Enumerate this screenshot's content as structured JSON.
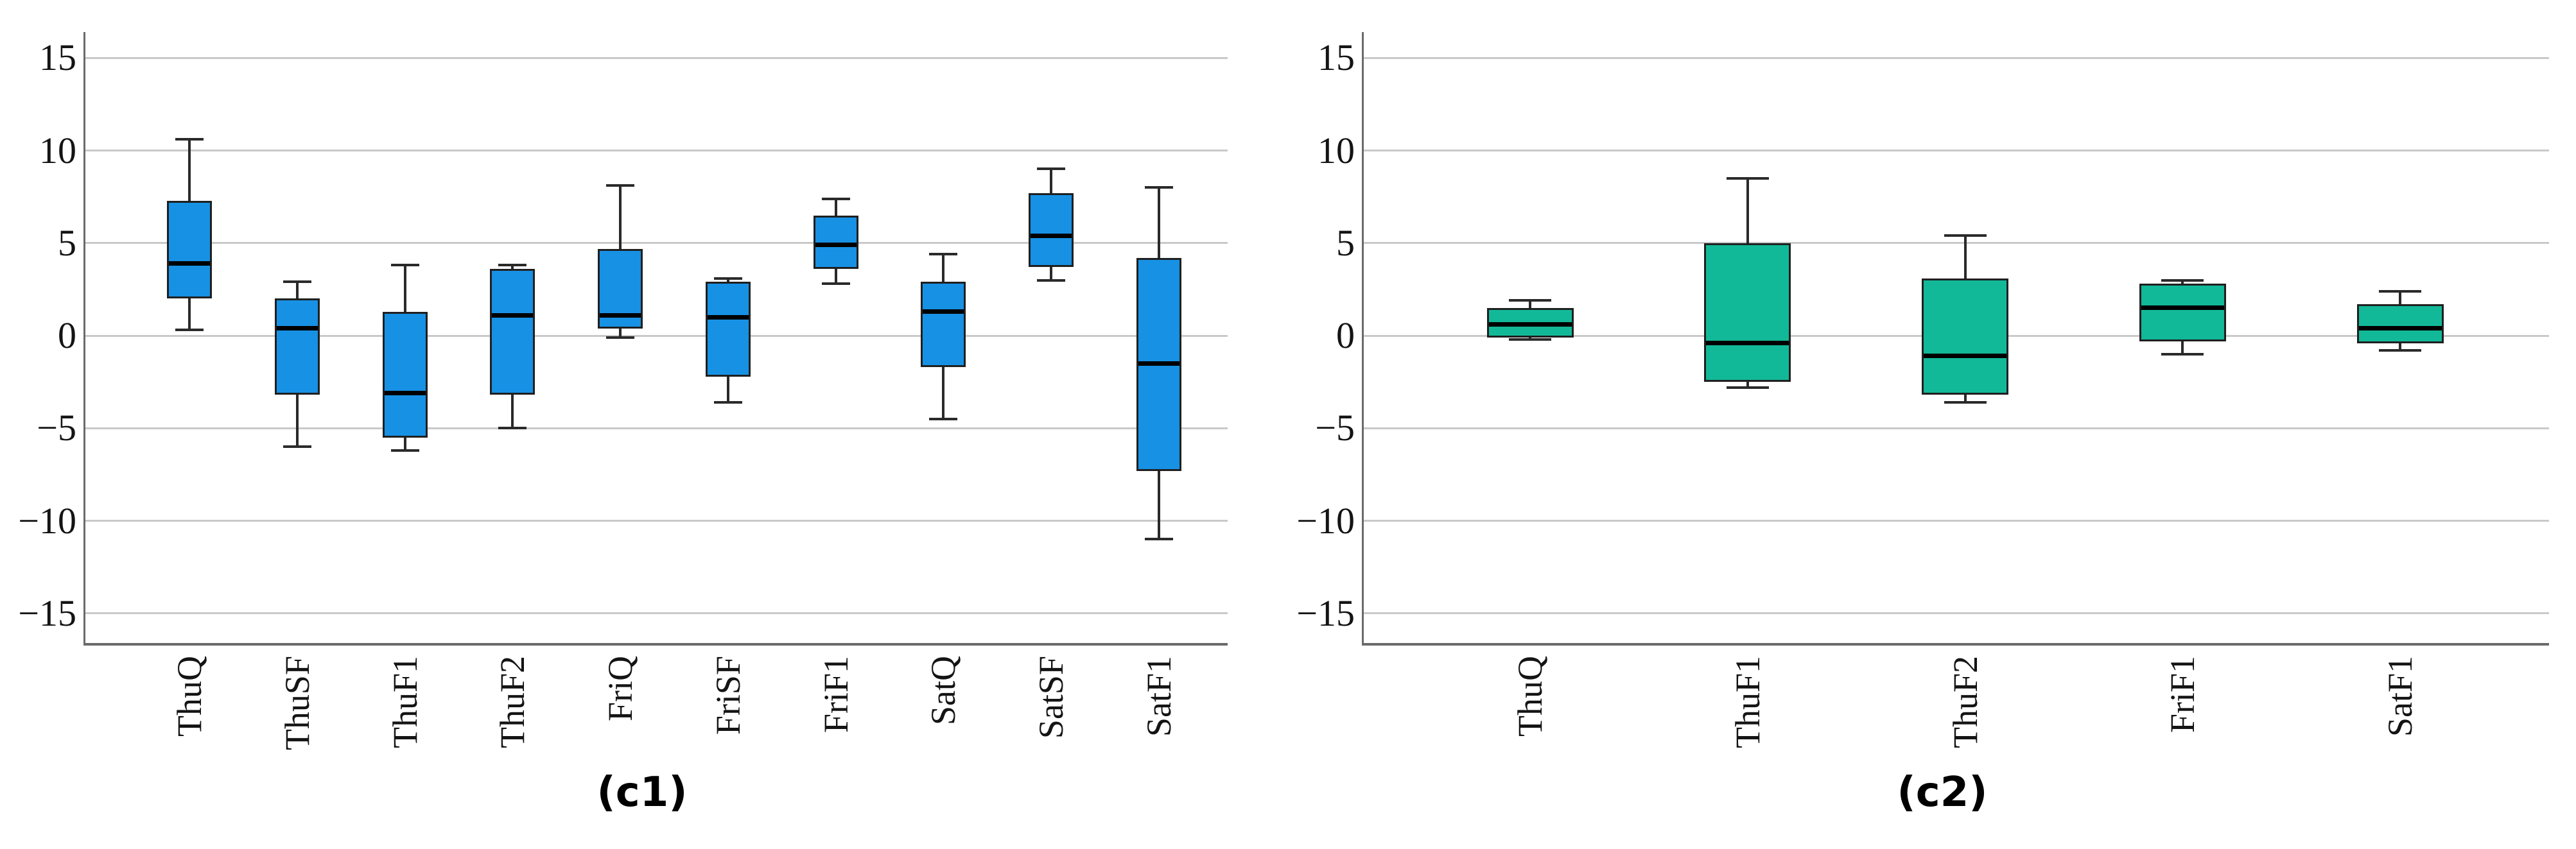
{
  "figure": {
    "background": "#ffffff"
  },
  "colors": {
    "grid": "#c9c9c9",
    "axis": "#6a6a6a",
    "box_edge": "#1f1f1f",
    "whisker": "#2a2a2a",
    "median": "#000000"
  },
  "captions": {
    "left": "(c1)",
    "right": "(c2)"
  },
  "chart_data": [
    {
      "type": "box",
      "panel": "c1",
      "caption": "(c1)",
      "fill_color": "#1791e4",
      "legend": "none",
      "categories": [
        "ThuQ",
        "ThuSF",
        "ThuF1",
        "ThuF2",
        "FriQ",
        "FriSF",
        "FriF1",
        "SatQ",
        "SatSF",
        "SatF1"
      ],
      "boxes": [
        {
          "label": "ThuQ",
          "whisker_low": 0.3,
          "q1": 2.0,
          "median": 3.9,
          "q3": 7.3,
          "whisker_high": 10.6
        },
        {
          "label": "ThuSF",
          "whisker_low": -6.0,
          "q1": -3.2,
          "median": 0.4,
          "q3": 2.0,
          "whisker_high": 2.9
        },
        {
          "label": "ThuF1",
          "whisker_low": -6.2,
          "q1": -5.5,
          "median": -3.1,
          "q3": 1.3,
          "whisker_high": 3.8
        },
        {
          "label": "ThuF2",
          "whisker_low": -5.0,
          "q1": -3.2,
          "median": 1.1,
          "q3": 3.6,
          "whisker_high": 3.8
        },
        {
          "label": "FriQ",
          "whisker_low": -0.1,
          "q1": 0.4,
          "median": 1.1,
          "q3": 4.7,
          "whisker_high": 8.1
        },
        {
          "label": "FriSF",
          "whisker_low": -3.6,
          "q1": -2.2,
          "median": 1.0,
          "q3": 2.9,
          "whisker_high": 3.1
        },
        {
          "label": "FriF1",
          "whisker_low": 2.8,
          "q1": 3.6,
          "median": 4.9,
          "q3": 6.5,
          "whisker_high": 7.4
        },
        {
          "label": "SatQ",
          "whisker_low": -4.5,
          "q1": -1.7,
          "median": 1.3,
          "q3": 2.9,
          "whisker_high": 4.4
        },
        {
          "label": "SatSF",
          "whisker_low": 3.0,
          "q1": 3.7,
          "median": 5.4,
          "q3": 7.7,
          "whisker_high": 9.0
        },
        {
          "label": "SatF1",
          "whisker_low": -11.0,
          "q1": -7.3,
          "median": -1.5,
          "q3": 4.2,
          "whisker_high": 8.0
        }
      ],
      "y_axis": {
        "ticks": [
          {
            "value": 15,
            "label": "15"
          },
          {
            "value": 10,
            "label": "10"
          },
          {
            "value": 5,
            "label": "5"
          },
          {
            "value": 0,
            "label": "0"
          },
          {
            "value": -5,
            "label": "−5"
          },
          {
            "value": -10,
            "label": "−10"
          },
          {
            "value": -15,
            "label": "−15"
          }
        ],
        "ylim": [
          -16.6,
          16.4
        ],
        "grid": true
      }
    },
    {
      "type": "box",
      "panel": "c2",
      "caption": "(c2)",
      "fill_color": "#12b998",
      "legend": "none",
      "categories": [
        "ThuQ",
        "ThuF1",
        "ThuF2",
        "FriF1",
        "SatF1"
      ],
      "boxes": [
        {
          "label": "ThuQ",
          "whisker_low": -0.2,
          "q1": -0.1,
          "median": 0.6,
          "q3": 1.5,
          "whisker_high": 1.9
        },
        {
          "label": "ThuF1",
          "whisker_low": -2.8,
          "q1": -2.5,
          "median": -0.4,
          "q3": 5.0,
          "whisker_high": 8.5
        },
        {
          "label": "ThuF2",
          "whisker_low": -3.6,
          "q1": -3.2,
          "median": -1.1,
          "q3": 3.1,
          "whisker_high": 5.4
        },
        {
          "label": "FriF1",
          "whisker_low": -1.0,
          "q1": -0.3,
          "median": 1.5,
          "q3": 2.8,
          "whisker_high": 3.0
        },
        {
          "label": "SatF1",
          "whisker_low": -0.8,
          "q1": -0.4,
          "median": 0.4,
          "q3": 1.7,
          "whisker_high": 2.4
        }
      ],
      "y_axis": {
        "ticks": [
          {
            "value": 15,
            "label": "15"
          },
          {
            "value": 10,
            "label": "10"
          },
          {
            "value": 5,
            "label": "5"
          },
          {
            "value": 0,
            "label": "0"
          },
          {
            "value": -5,
            "label": "−5"
          },
          {
            "value": -10,
            "label": "−10"
          },
          {
            "value": -15,
            "label": "−15"
          }
        ],
        "ylim": [
          -16.6,
          16.4
        ],
        "grid": true
      }
    }
  ]
}
